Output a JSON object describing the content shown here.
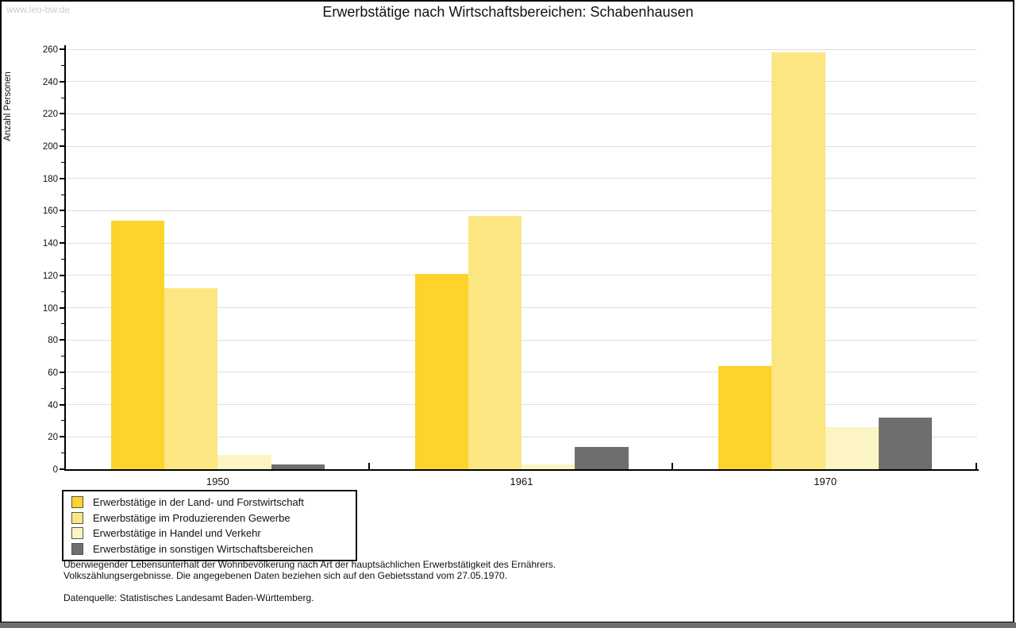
{
  "watermark": "www.leo-bw.de",
  "title": "Erwerbstätige nach Wirtschaftsbereichen: Schabenhausen",
  "chart_data": {
    "type": "bar",
    "title": "Erwerbstätige nach Wirtschaftsbereichen: Schabenhausen",
    "xlabel": "",
    "ylabel": "Anzahl Personen",
    "ylim": [
      0,
      260
    ],
    "ytick_step": 20,
    "yminor_step": 10,
    "grid": true,
    "legend_position": "bottom-left",
    "categories": [
      "1950",
      "1961",
      "1970"
    ],
    "series": [
      {
        "name": "Erwerbstätige in der Land- und Forstwirtschaft",
        "color": "#fdd32c",
        "values": [
          154,
          121,
          64
        ]
      },
      {
        "name": "Erwerbstätige im Produzierenden Gewerbe",
        "color": "#fbe682",
        "values": [
          112,
          157,
          258
        ]
      },
      {
        "name": "Erwerbstätige in Handel und Verkehr",
        "color": "#fcf4c3",
        "values": [
          9,
          3,
          26
        ]
      },
      {
        "name": "Erwerbstätige in sonstigen Wirtschaftsbereichen",
        "color": "#6e6e6e",
        "values": [
          3,
          14,
          32
        ]
      }
    ]
  },
  "footer": {
    "line1": "Überwiegender Lebensunterhalt der Wohnbevölkerung nach Art der hauptsächlichen Erwerbstätigkeit des Ernährers.",
    "line2": "Volkszählungsergebnisse. Die angegebenen Daten beziehen sich auf den Gebietsstand vom 27.05.1970.",
    "source": "Datenquelle: Statistisches Landesamt Baden-Württemberg."
  }
}
